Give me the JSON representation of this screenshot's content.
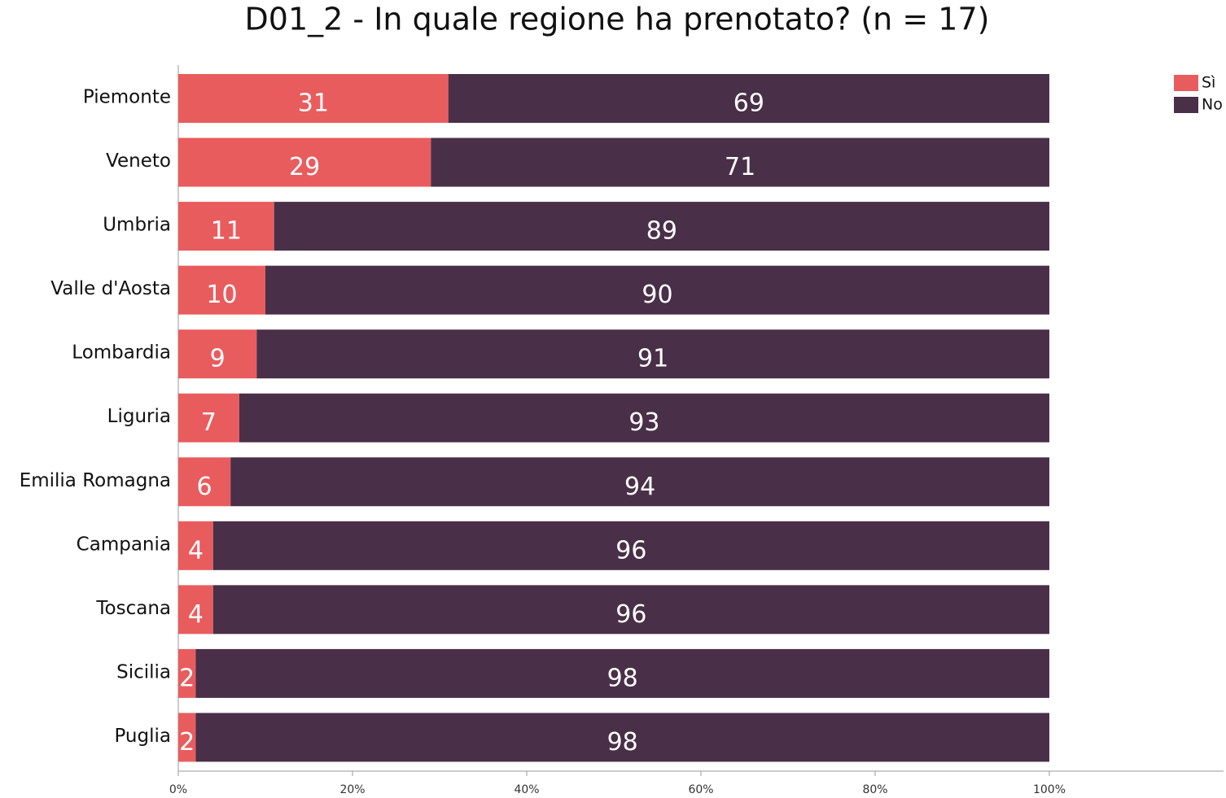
{
  "chart_data": {
    "type": "bar",
    "orientation": "horizontal",
    "stacked": true,
    "title": "D01_2 - In quale regione ha prenotato? (n = 17)",
    "categories": [
      "Piemonte",
      "Veneto",
      "Umbria",
      "Valle d'Aosta",
      "Lombardia",
      "Liguria",
      "Emilia Romagna",
      "Campania",
      "Toscana",
      "Sicilia",
      "Puglia"
    ],
    "series": [
      {
        "name": "Sì",
        "color": "#e95c5e",
        "values": [
          31,
          29,
          11,
          10,
          9,
          7,
          6,
          4,
          4,
          2,
          2
        ]
      },
      {
        "name": "No",
        "color": "#4a2f48",
        "values": [
          69,
          71,
          89,
          90,
          91,
          93,
          94,
          96,
          96,
          98,
          98
        ]
      }
    ],
    "xlim": [
      0,
      120
    ],
    "xticks": [
      {
        "value": 0,
        "label": "0%"
      },
      {
        "value": 20,
        "label": "20%"
      },
      {
        "value": 40,
        "label": "40%"
      },
      {
        "value": 60,
        "label": "60%"
      },
      {
        "value": 80,
        "label": "80%"
      },
      {
        "value": 100,
        "label": "100%"
      }
    ],
    "legend": "top-right"
  }
}
